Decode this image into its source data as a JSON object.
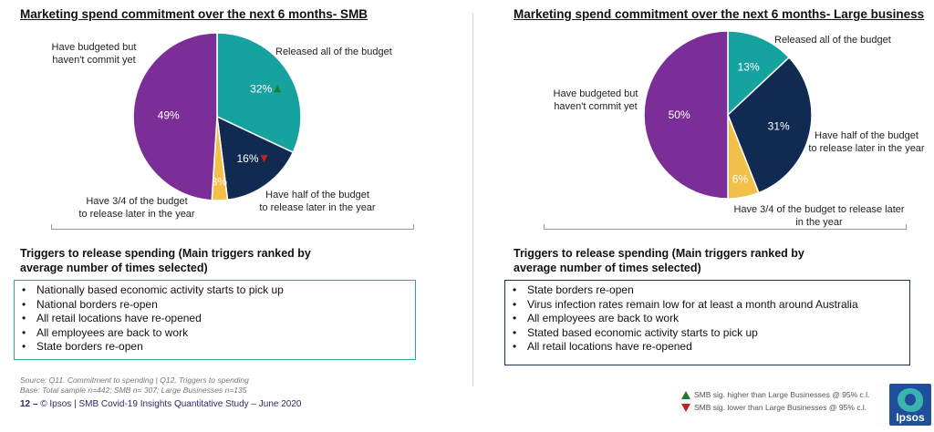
{
  "chart_data": [
    {
      "type": "pie",
      "title": "Marketing spend commitment over the next 6 months- SMB",
      "start_angle_deg": 0,
      "slices": [
        {
          "label": "Released all of the budget",
          "value": 32,
          "display": "32%",
          "color": "#16a3a0",
          "sig": "up"
        },
        {
          "label": "Have half of the budget to release later in the year",
          "value": 16,
          "display": "16%",
          "color": "#102a52",
          "sig": "down"
        },
        {
          "label": "Have 3/4 of the budget to release later in the year",
          "value": 3,
          "display": "3%",
          "color": "#f2bf48",
          "sig": ""
        },
        {
          "label": "Have budgeted but haven't commit yet",
          "value": 49,
          "display": "49%",
          "color": "#7c2e98",
          "sig": ""
        }
      ]
    },
    {
      "type": "pie",
      "title": "Marketing spend commitment over the next 6 months- Large business",
      "start_angle_deg": 0,
      "slices": [
        {
          "label": "Released all of the budget",
          "value": 13,
          "display": "13%",
          "color": "#16a3a0",
          "sig": ""
        },
        {
          "label": "Have half of the budget to release later in the year",
          "value": 31,
          "display": "31%",
          "color": "#102a52",
          "sig": ""
        },
        {
          "label": "Have 3/4 of the budget to release later in the year",
          "value": 6,
          "display": "6%",
          "color": "#f2bf48",
          "sig": ""
        },
        {
          "label": "Have budgeted but haven't commit yet",
          "value": 50,
          "display": "50%",
          "color": "#7c2e98",
          "sig": ""
        }
      ]
    }
  ],
  "smb": {
    "labels": {
      "budgeted_l1": "Have budgeted but",
      "budgeted_l2": "haven't commit yet",
      "released": "Released all of the budget",
      "half_l1": "Have half of the budget",
      "half_l2": "to release later in the year",
      "threeq_l1": "Have 3/4 of the budget",
      "threeq_l2": "to release later in the year"
    },
    "triggers_title_l1": "Triggers to release spending (Main triggers ranked by",
    "triggers_title_l2": "average number of times selected)",
    "triggers": [
      "Nationally based economic activity starts to pick up",
      "National borders re-open",
      "All retail locations have re-opened",
      "All employees are back to work",
      "State borders re-open"
    ]
  },
  "large": {
    "labels": {
      "released": "Released all of the budget",
      "budgeted_l1": "Have budgeted but",
      "budgeted_l2": "haven't commit yet",
      "half_l1": "Have half of the budget",
      "half_l2": "to release later in the year",
      "threeq_l1": "Have 3/4 of the budget to release later",
      "threeq_l2": "in the year"
    },
    "triggers_title_l1": "Triggers to release spending (Main triggers ranked by",
    "triggers_title_l2": "average number of times selected)",
    "triggers": [
      "State borders re-open",
      "Virus infection rates remain low for at least a month around Australia",
      "All employees are back to work",
      "Stated based economic activity starts to pick up",
      "All retail locations have re-opened"
    ]
  },
  "source": {
    "line1": "Source: Q11.  Commitment to spending | Q12, Triggers to spending",
    "line2": "Base: Total sample n=442; SMB n= 307; Large Businesses n=135"
  },
  "footer": {
    "page": "12 –",
    "text": "© Ipsos | SMB Covid-19 Insights Quantitative Study – June 2020"
  },
  "legend": {
    "higher": "SMB sig. higher than Large Businesses @ 95% c.l.",
    "lower": "SMB sig. lower than Large Businesses @ 95% c.l."
  },
  "logo": {
    "text": "Ipsos"
  },
  "colors": {
    "teal": "#16a3a0",
    "navy": "#102a52",
    "yellow": "#f2bf48",
    "purple": "#7c2e98",
    "sig_up": "#1a7d2f",
    "sig_down": "#c81e1e"
  }
}
